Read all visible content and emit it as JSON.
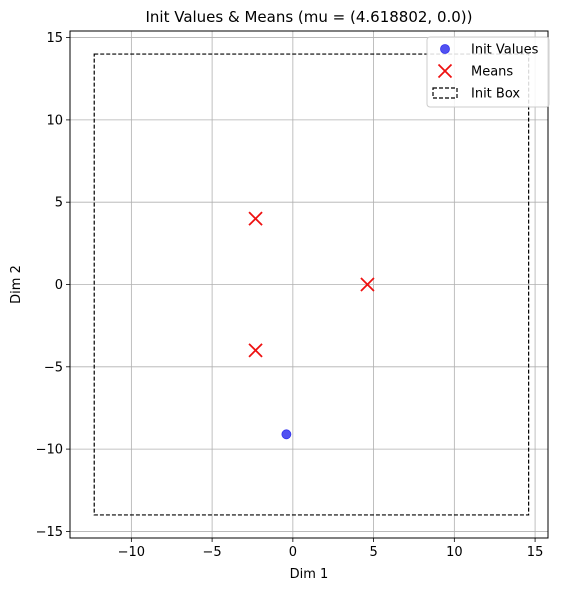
{
  "chart_data": {
    "type": "scatter",
    "title": "Init Values & Means (mu = (4.618802, 0.0))",
    "xlabel": "Dim 1",
    "ylabel": "Dim 2",
    "xlim": [
      -13.8,
      15.8
    ],
    "ylim": [
      -15.4,
      15.4
    ],
    "xticks": [
      -10,
      -5,
      0,
      5,
      10,
      15
    ],
    "yticks": [
      -15,
      -10,
      -5,
      0,
      5,
      10,
      15
    ],
    "xtick_labels": [
      "−10",
      "−5",
      "0",
      "5",
      "10",
      "15"
    ],
    "ytick_labels": [
      "−15",
      "−10",
      "−5",
      "0",
      "5",
      "10",
      "15"
    ],
    "grid": true,
    "legend_position": "top-right",
    "series": [
      {
        "name": "Init Values",
        "marker": "circle",
        "color": "#3333ee",
        "points": [
          [
            -0.4,
            -9.1
          ]
        ]
      },
      {
        "name": "Means",
        "marker": "x",
        "color": "#ee1111",
        "points": [
          [
            4.618802,
            0.0
          ],
          [
            -2.309401,
            4.0
          ],
          [
            -2.309401,
            -4.0
          ]
        ]
      }
    ],
    "box": {
      "name": "Init Box",
      "style": "dashed",
      "color": "#000000",
      "x": [
        -12.3,
        14.6
      ],
      "y": [
        -14.0,
        14.0
      ]
    }
  }
}
